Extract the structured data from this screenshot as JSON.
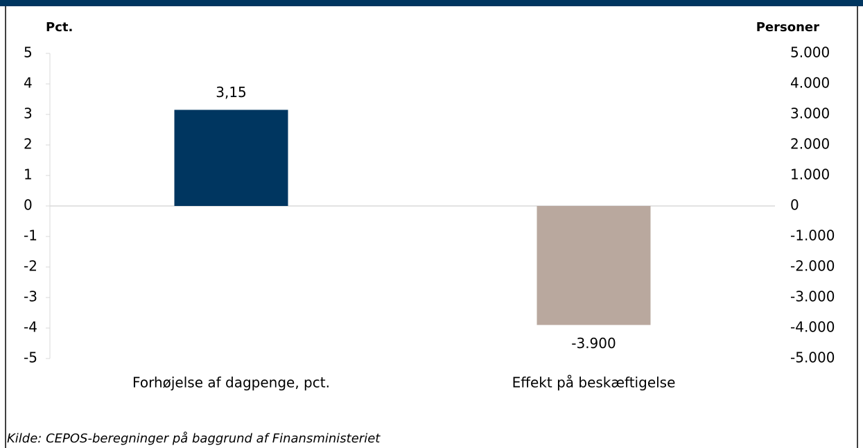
{
  "chart_data": {
    "type": "bar",
    "categories": [
      "Forhøjelse af dagpenge, pct.",
      "Effekt på beskæftigelse"
    ],
    "series": [
      {
        "color": "#003660",
        "values": [
          3.15,
          null
        ],
        "value_labels": [
          "3,15",
          null
        ]
      },
      {
        "color": "#b9a89e",
        "axis": "y2",
        "values": [
          null,
          -3900
        ],
        "value_labels": [
          null,
          "-3.900"
        ]
      }
    ],
    "ylabel": "Pct.",
    "y2label": "Personer",
    "ylim": [
      -5,
      5
    ],
    "yticks": [
      -5,
      -4,
      -3,
      -2,
      -1,
      0,
      1,
      2,
      3,
      4,
      5
    ],
    "y2lim": [
      -5000,
      5000
    ],
    "y2ticks": [
      {
        "value": -5000,
        "label": "-5.000"
      },
      {
        "value": -4000,
        "label": "-4.000"
      },
      {
        "value": -3000,
        "label": "-3.000"
      },
      {
        "value": -2000,
        "label": "-2.000"
      },
      {
        "value": -1000,
        "label": "-1.000"
      },
      0,
      {
        "value": 1000,
        "label": "1.000"
      },
      {
        "value": 2000,
        "label": "2.000"
      },
      {
        "value": 3000,
        "label": "3.000"
      },
      {
        "value": 4000,
        "label": "4.000"
      },
      {
        "value": 5000,
        "label": "5.000"
      }
    ],
    "source": "Kilde: CEPOS-beregninger på baggrund af Finansministeriet"
  }
}
